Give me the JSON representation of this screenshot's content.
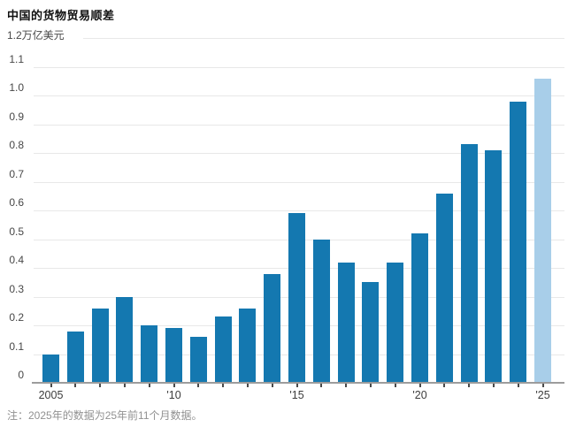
{
  "title": "中国的货物贸易顺差",
  "note": "注：2025年的数据为25年前11个月数据。",
  "y_axis": {
    "unit_label": "1.2万亿美元",
    "ticks": [
      "1.1",
      "1.0",
      "0.9",
      "0.8",
      "0.7",
      "0.6",
      "0.5",
      "0.4",
      "0.3",
      "0.2",
      "0.1",
      "0"
    ]
  },
  "x_axis": {
    "labels": [
      {
        "text": "2005",
        "index": 0
      },
      {
        "text": "'10",
        "index": 5
      },
      {
        "text": "'15",
        "index": 10
      },
      {
        "text": "'20",
        "index": 15
      },
      {
        "text": "'25",
        "index": 20
      }
    ]
  },
  "chart_data": {
    "type": "bar",
    "title": "中国的货物贸易顺差",
    "ylabel": "万亿美元",
    "ylim": [
      0,
      1.2
    ],
    "grid": true,
    "categories": [
      2005,
      2006,
      2007,
      2008,
      2009,
      2010,
      2011,
      2012,
      2013,
      2014,
      2015,
      2016,
      2017,
      2018,
      2019,
      2020,
      2021,
      2022,
      2023,
      2024,
      2025
    ],
    "values": [
      0.1,
      0.18,
      0.26,
      0.3,
      0.2,
      0.19,
      0.16,
      0.23,
      0.26,
      0.38,
      0.59,
      0.5,
      0.42,
      0.35,
      0.42,
      0.52,
      0.66,
      0.83,
      0.81,
      0.98,
      1.06
    ],
    "highlight_year": 2025,
    "highlight_note": "2025年的数据为25年前11个月数据",
    "colors": {
      "bar": "#1478b0",
      "highlight_bar": "#a8cee9",
      "gridline": "#e8e8e8",
      "axis": "#9c9c9c"
    }
  }
}
